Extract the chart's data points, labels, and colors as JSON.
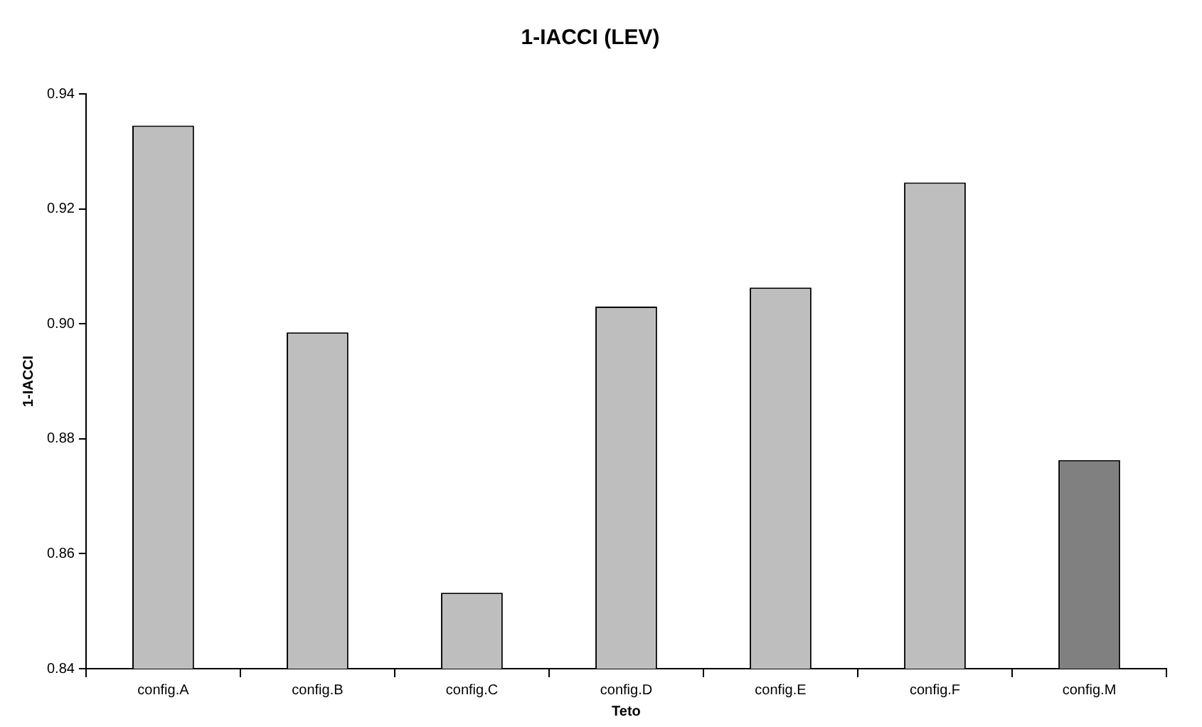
{
  "chart_data": {
    "type": "bar",
    "title": "1-IACCI (LEV)",
    "xlabel": "Teto",
    "ylabel": "1-IACCI",
    "categories": [
      "config.A",
      "config.B",
      "config.C",
      "config.D",
      "config.E",
      "config.F",
      "config.M"
    ],
    "values": [
      0.9345,
      0.8985,
      0.8532,
      0.903,
      0.9063,
      0.9246,
      0.8763
    ],
    "colors": [
      "#bebebe",
      "#bebebe",
      "#bebebe",
      "#bebebe",
      "#bebebe",
      "#bebebe",
      "#808080"
    ],
    "ylim": [
      0.84,
      0.94
    ],
    "yticks": [
      0.84,
      0.86,
      0.88,
      {
        "value": 0.9,
        "label": "0.90"
      },
      0.92,
      0.94
    ],
    "grid": false,
    "legend": false
  }
}
